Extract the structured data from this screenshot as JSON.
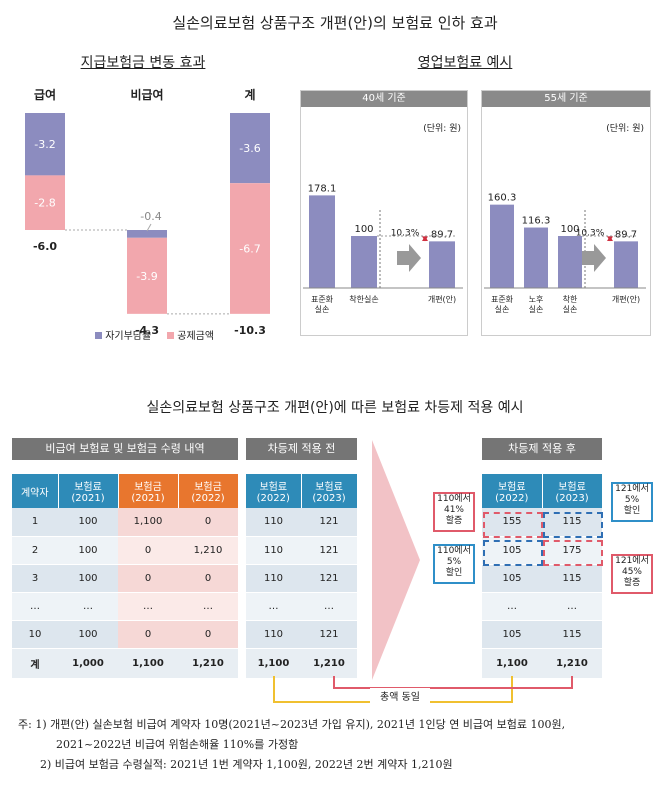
{
  "main_title": "실손의료보험 상품구조 개편(안)의 보험료 인하 효과",
  "section1": {
    "title": "지급보험금 변동 효과",
    "legend": [
      "자기부담률",
      "공제금액"
    ],
    "colors": {
      "self": "#8c8cbf",
      "deduct": "#f2a7ad"
    }
  },
  "section2": {
    "title": "영업보험료 예시",
    "unit": "(단위: 원)",
    "arrow_pct": "10.3%"
  },
  "chart_data": [
    {
      "type": "bar",
      "categories": [
        "급여",
        "비급여",
        "계"
      ],
      "series": [
        {
          "name": "자기부담률",
          "values": [
            -3.2,
            -0.4,
            -3.6
          ]
        },
        {
          "name": "공제금액",
          "values": [
            -2.8,
            -3.9,
            -6.7
          ]
        }
      ],
      "totals": [
        -6.0,
        -4.3,
        -10.3
      ],
      "total_labels": [
        "-6.0",
        "-4.3",
        "-10.3"
      ],
      "segment_labels": [
        [
          "-3.2",
          "-2.8"
        ],
        [
          "-0.4",
          "-3.9"
        ],
        [
          "-3.6",
          "-6.7"
        ]
      ],
      "stacked": true,
      "waterfall": true
    },
    {
      "type": "bar",
      "title": "40세 기준",
      "categories": [
        "표준화\n실손",
        "착한실손",
        "개편(안)"
      ],
      "values": [
        178.1,
        100,
        89.7
      ],
      "value_labels": [
        "178.1",
        "100",
        "89.7"
      ]
    },
    {
      "type": "bar",
      "title": "55세 기준",
      "categories": [
        "표준화\n실손",
        "노후\n실손",
        "착한\n실손",
        "개편(안)"
      ],
      "values": [
        160.3,
        116.3,
        100,
        89.7
      ],
      "value_labels": [
        "160.3",
        "116.3",
        "100",
        "89.7"
      ]
    }
  ],
  "section3": {
    "title": "실손의료보험 상품구조 개편(안)에 따른 보험료 차등제 적용 예시",
    "box1_title": "비급여 보험료 및 보험금 수령 내역",
    "box2_title": "차등제 적용 전",
    "box3_title": "차등제 적용 후",
    "table1_headers": [
      "계약자",
      "보험료\n(2021)",
      "보험금\n(2021)",
      "보험금\n(2022)"
    ],
    "table1_rows": [
      [
        "1",
        "100",
        "1,100",
        "0"
      ],
      [
        "2",
        "100",
        "0",
        "1,210"
      ],
      [
        "3",
        "100",
        "0",
        "0"
      ],
      [
        "…",
        "…",
        "…",
        "…"
      ],
      [
        "10",
        "100",
        "0",
        "0"
      ],
      [
        "계",
        "1,000",
        "1,100",
        "1,210"
      ]
    ],
    "table2_headers": [
      "보험료\n(2022)",
      "보험료\n(2023)"
    ],
    "table2_rows": [
      [
        "110",
        "121"
      ],
      [
        "110",
        "121"
      ],
      [
        "110",
        "121"
      ],
      [
        "…",
        "…"
      ],
      [
        "110",
        "121"
      ],
      [
        "1,100",
        "1,210"
      ]
    ],
    "table3_headers": [
      "보험료\n(2022)",
      "보험료\n(2023)"
    ],
    "table3_rows": [
      [
        "155",
        "115"
      ],
      [
        "105",
        "175"
      ],
      [
        "105",
        "115"
      ],
      [
        "…",
        "…"
      ],
      [
        "105",
        "115"
      ],
      [
        "1,100",
        "1,210"
      ]
    ],
    "callouts": {
      "c1": "110에서\n41%\n할증",
      "c2": "110에서\n5%\n할인",
      "c3": "121에서\n5%\n할인",
      "c4": "121에서\n45%\n할증"
    },
    "total_same": "총액 동일"
  },
  "notes": [
    "주: 1) 개편(안) 실손보험 비급여 계약자 10명(2021년~2023년 가입 유지), 2021년 1인당 연 비급여 보험료 100원,",
    "2021~2022년 비급여 위험손해율 110%를 가정함",
    "2) 비급여 보험금 수령실적: 2021년 1번 계약자 1,100원, 2022년 2번 계약자 1,210원"
  ]
}
